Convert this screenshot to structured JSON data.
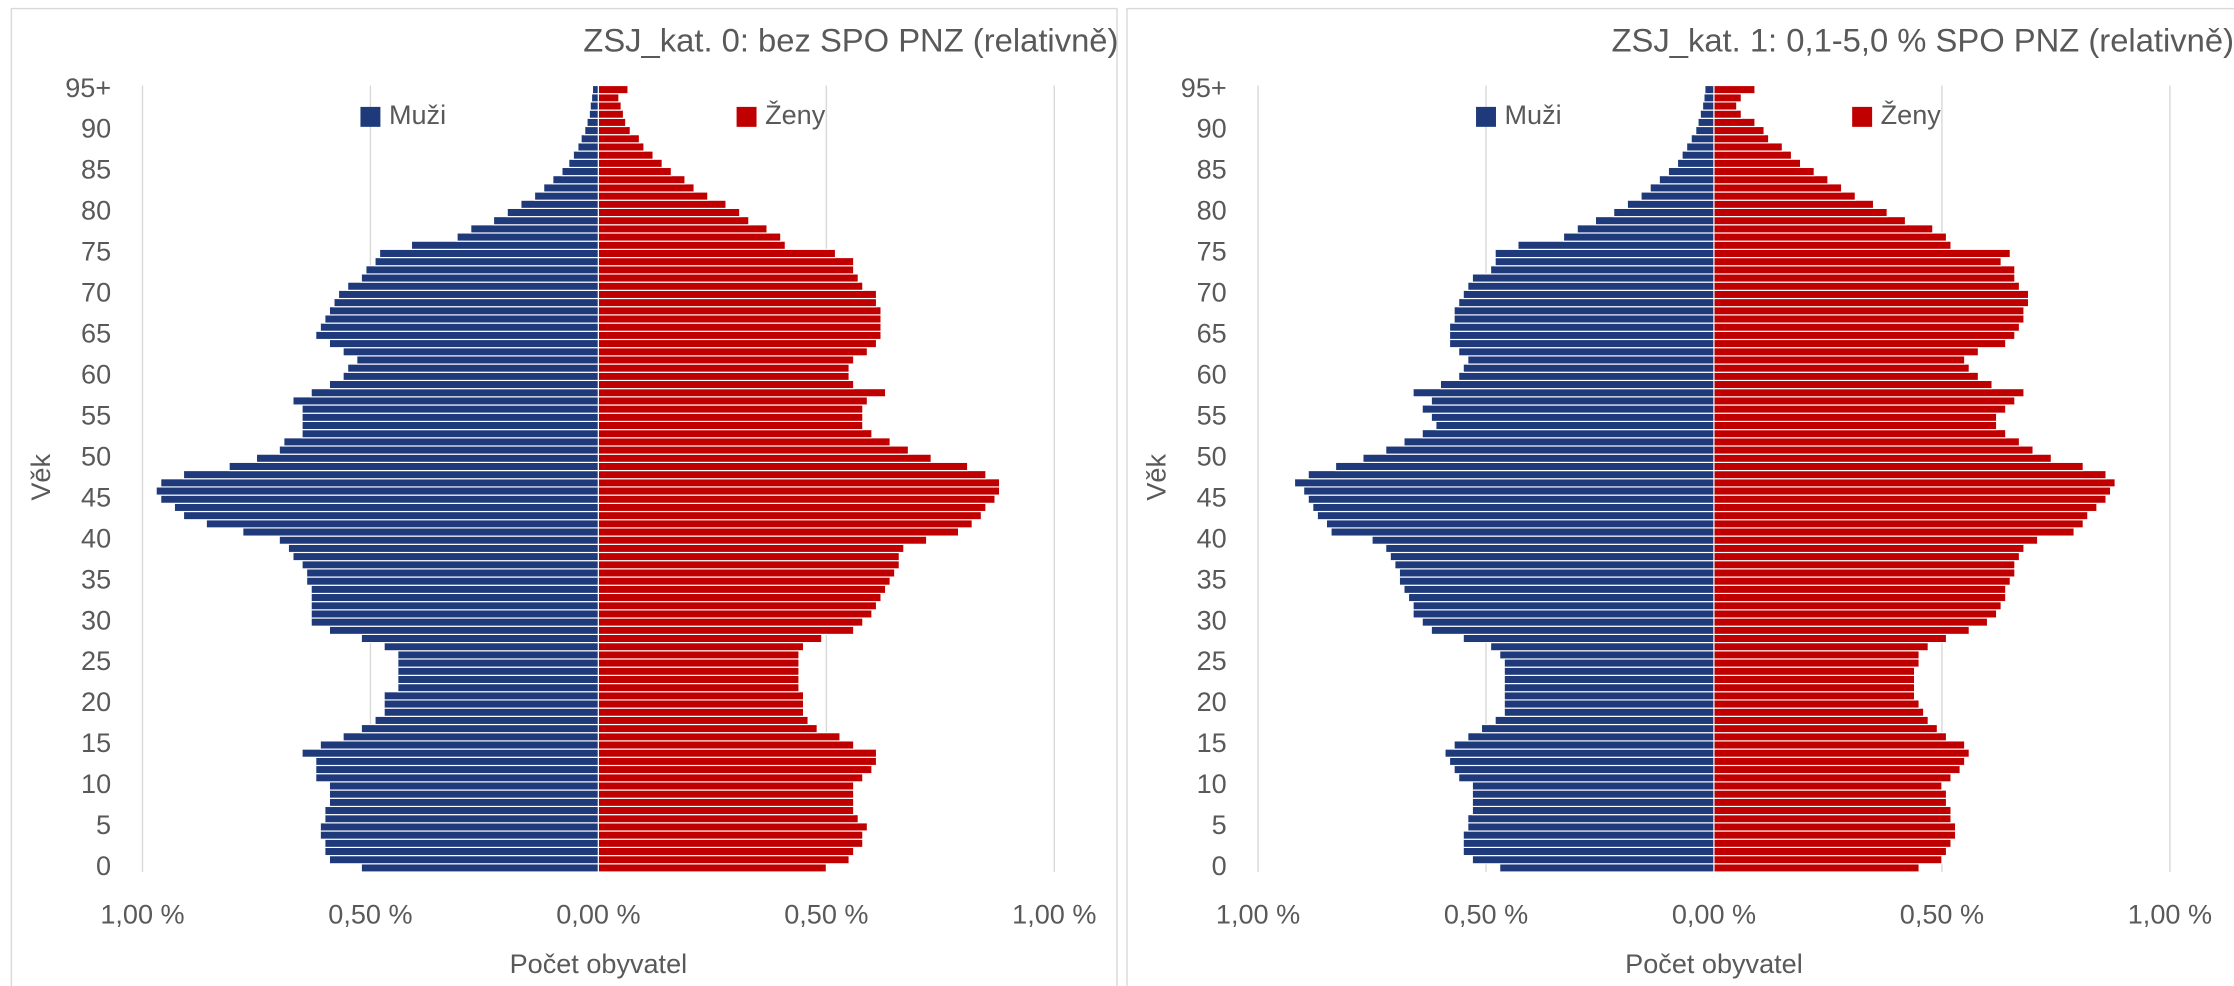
{
  "chart_data": [
    {
      "type": "bar",
      "orientation": "horizontal",
      "title": "ZSJ_kat. 0: bez SPO PNZ (relativně)",
      "xlabel": "Počet obyvatel",
      "ylabel": "Věk",
      "legend": "top",
      "grid": true,
      "xlim": [
        -1,
        1
      ],
      "xticks": [
        {
          "value": -1,
          "label": "1,00 %"
        },
        {
          "value": -0.5,
          "label": "0,50 %"
        },
        {
          "value": 0,
          "label": "0,00 %"
        },
        {
          "value": 0.5,
          "label": "0,50 %"
        },
        {
          "value": 1,
          "label": "1,00 %"
        }
      ],
      "categories": [
        "0",
        null,
        null,
        null,
        null,
        "5",
        null,
        null,
        null,
        null,
        "10",
        null,
        null,
        null,
        null,
        "15",
        null,
        null,
        null,
        null,
        "20",
        null,
        null,
        null,
        null,
        "25",
        null,
        null,
        null,
        null,
        "30",
        null,
        null,
        null,
        null,
        "35",
        null,
        null,
        null,
        null,
        "40",
        null,
        null,
        null,
        null,
        "45",
        null,
        null,
        null,
        null,
        "50",
        null,
        null,
        null,
        null,
        "55",
        null,
        null,
        null,
        null,
        "60",
        null,
        null,
        null,
        null,
        "65",
        null,
        null,
        null,
        null,
        "70",
        null,
        null,
        null,
        null,
        "75",
        null,
        null,
        null,
        null,
        "80",
        null,
        null,
        null,
        null,
        "85",
        null,
        null,
        null,
        null,
        "90",
        null,
        null,
        null,
        null,
        "95+"
      ],
      "series": [
        {
          "name": "Muži",
          "color": "#1f3a7a",
          "values": [
            -0.52,
            -0.59,
            -0.6,
            -0.6,
            -0.61,
            -0.61,
            -0.6,
            -0.6,
            -0.59,
            -0.59,
            -0.59,
            -0.62,
            -0.62,
            -0.62,
            -0.65,
            -0.61,
            -0.56,
            -0.52,
            -0.49,
            -0.47,
            -0.47,
            -0.47,
            -0.44,
            -0.44,
            -0.44,
            -0.44,
            -0.44,
            -0.47,
            -0.52,
            -0.59,
            -0.63,
            -0.63,
            -0.63,
            -0.63,
            -0.63,
            -0.64,
            -0.64,
            -0.65,
            -0.67,
            -0.68,
            -0.7,
            -0.78,
            -0.86,
            -0.91,
            -0.93,
            -0.96,
            -0.97,
            -0.96,
            -0.91,
            -0.81,
            -0.75,
            -0.7,
            -0.69,
            -0.65,
            -0.65,
            -0.65,
            -0.65,
            -0.67,
            -0.63,
            -0.59,
            -0.56,
            -0.55,
            -0.53,
            -0.56,
            -0.59,
            -0.62,
            -0.61,
            -0.6,
            -0.59,
            -0.58,
            -0.57,
            -0.55,
            -0.52,
            -0.51,
            -0.49,
            -0.48,
            -0.41,
            -0.31,
            -0.28,
            -0.23,
            -0.2,
            -0.17,
            -0.14,
            -0.12,
            -0.1,
            -0.08,
            -0.065,
            -0.055,
            -0.045,
            -0.038,
            -0.03,
            -0.025,
            -0.02,
            -0.018,
            -0.015,
            -0.013
          ]
        },
        {
          "name": "Ženy",
          "color": "#c00000",
          "values": [
            0.5,
            0.55,
            0.56,
            0.58,
            0.58,
            0.59,
            0.57,
            0.56,
            0.56,
            0.56,
            0.56,
            0.58,
            0.6,
            0.61,
            0.61,
            0.56,
            0.53,
            0.48,
            0.46,
            0.45,
            0.45,
            0.45,
            0.44,
            0.44,
            0.44,
            0.44,
            0.44,
            0.45,
            0.49,
            0.56,
            0.58,
            0.6,
            0.61,
            0.62,
            0.63,
            0.64,
            0.65,
            0.66,
            0.66,
            0.67,
            0.72,
            0.79,
            0.82,
            0.84,
            0.85,
            0.87,
            0.88,
            0.88,
            0.85,
            0.81,
            0.73,
            0.68,
            0.64,
            0.6,
            0.58,
            0.58,
            0.58,
            0.59,
            0.63,
            0.56,
            0.55,
            0.55,
            0.56,
            0.59,
            0.61,
            0.62,
            0.62,
            0.62,
            0.62,
            0.61,
            0.61,
            0.58,
            0.57,
            0.56,
            0.56,
            0.52,
            0.41,
            0.4,
            0.37,
            0.33,
            0.31,
            0.28,
            0.24,
            0.21,
            0.19,
            0.16,
            0.14,
            0.12,
            0.1,
            0.09,
            0.07,
            0.06,
            0.055,
            0.05,
            0.045,
            0.065
          ]
        }
      ]
    },
    {
      "type": "bar",
      "orientation": "horizontal",
      "title": "ZSJ_kat. 1: 0,1-5,0 % SPO PNZ (relativně)",
      "xlabel": "Počet obyvatel",
      "ylabel": "Věk",
      "legend": "top",
      "grid": true,
      "xlim": [
        -1,
        1
      ],
      "xticks": [
        {
          "value": -1,
          "label": "1,00 %"
        },
        {
          "value": -0.5,
          "label": "0,50 %"
        },
        {
          "value": 0,
          "label": "0,00 %"
        },
        {
          "value": 0.5,
          "label": "0,50 %"
        },
        {
          "value": 1,
          "label": "1,00 %"
        }
      ],
      "categories": [
        "0",
        null,
        null,
        null,
        null,
        "5",
        null,
        null,
        null,
        null,
        "10",
        null,
        null,
        null,
        null,
        "15",
        null,
        null,
        null,
        null,
        "20",
        null,
        null,
        null,
        null,
        "25",
        null,
        null,
        null,
        null,
        "30",
        null,
        null,
        null,
        null,
        "35",
        null,
        null,
        null,
        null,
        "40",
        null,
        null,
        null,
        null,
        "45",
        null,
        null,
        null,
        null,
        "50",
        null,
        null,
        null,
        null,
        "55",
        null,
        null,
        null,
        null,
        "60",
        null,
        null,
        null,
        null,
        "65",
        null,
        null,
        null,
        null,
        "70",
        null,
        null,
        null,
        null,
        "75",
        null,
        null,
        null,
        null,
        "80",
        null,
        null,
        null,
        null,
        "85",
        null,
        null,
        null,
        null,
        "90",
        null,
        null,
        null,
        null,
        "95+"
      ],
      "series": [
        {
          "name": "Muži",
          "color": "#1f3a7a",
          "values": [
            -0.47,
            -0.53,
            -0.55,
            -0.55,
            -0.55,
            -0.54,
            -0.54,
            -0.53,
            -0.53,
            -0.53,
            -0.53,
            -0.56,
            -0.57,
            -0.58,
            -0.59,
            -0.57,
            -0.54,
            -0.51,
            -0.48,
            -0.46,
            -0.46,
            -0.46,
            -0.46,
            -0.46,
            -0.46,
            -0.46,
            -0.47,
            -0.49,
            -0.55,
            -0.62,
            -0.64,
            -0.66,
            -0.66,
            -0.67,
            -0.68,
            -0.69,
            -0.69,
            -0.7,
            -0.71,
            -0.72,
            -0.75,
            -0.84,
            -0.85,
            -0.87,
            -0.88,
            -0.89,
            -0.9,
            -0.92,
            -0.89,
            -0.83,
            -0.77,
            -0.72,
            -0.68,
            -0.64,
            -0.61,
            -0.62,
            -0.64,
            -0.62,
            -0.66,
            -0.6,
            -0.56,
            -0.55,
            -0.54,
            -0.56,
            -0.58,
            -0.58,
            -0.58,
            -0.57,
            -0.57,
            -0.56,
            -0.55,
            -0.54,
            -0.53,
            -0.49,
            -0.48,
            -0.48,
            -0.43,
            -0.33,
            -0.3,
            -0.26,
            -0.22,
            -0.19,
            -0.16,
            -0.14,
            -0.12,
            -0.1,
            -0.08,
            -0.07,
            -0.06,
            -0.05,
            -0.04,
            -0.035,
            -0.03,
            -0.025,
            -0.022,
            -0.02
          ]
        },
        {
          "name": "Ženy",
          "color": "#c00000",
          "values": [
            0.45,
            0.5,
            0.51,
            0.52,
            0.53,
            0.53,
            0.52,
            0.52,
            0.51,
            0.51,
            0.5,
            0.52,
            0.54,
            0.55,
            0.56,
            0.55,
            0.51,
            0.49,
            0.47,
            0.46,
            0.45,
            0.44,
            0.44,
            0.44,
            0.44,
            0.45,
            0.45,
            0.47,
            0.51,
            0.56,
            0.6,
            0.62,
            0.63,
            0.64,
            0.64,
            0.65,
            0.66,
            0.66,
            0.67,
            0.68,
            0.71,
            0.79,
            0.81,
            0.82,
            0.84,
            0.86,
            0.87,
            0.88,
            0.86,
            0.81,
            0.74,
            0.7,
            0.67,
            0.64,
            0.62,
            0.62,
            0.64,
            0.66,
            0.68,
            0.61,
            0.58,
            0.56,
            0.55,
            0.58,
            0.64,
            0.66,
            0.67,
            0.68,
            0.68,
            0.69,
            0.69,
            0.67,
            0.66,
            0.66,
            0.63,
            0.65,
            0.52,
            0.51,
            0.48,
            0.42,
            0.38,
            0.35,
            0.31,
            0.28,
            0.25,
            0.22,
            0.19,
            0.17,
            0.15,
            0.12,
            0.11,
            0.09,
            0.06,
            0.05,
            0.06,
            0.09
          ]
        }
      ]
    }
  ]
}
